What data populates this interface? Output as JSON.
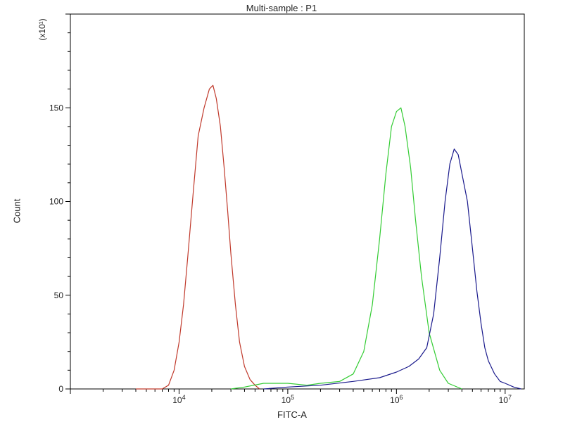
{
  "chart_data": {
    "type": "line",
    "title": "Multi-sample : P1",
    "xlabel": "FITC-A",
    "ylabel": "Count",
    "y_multiplier": "(x10¹)",
    "x_scale": "log",
    "xlim": [
      1000,
      15000000
    ],
    "ylim": [
      0,
      200
    ],
    "y_ticks": [
      0,
      50,
      100,
      150
    ],
    "x_ticks": [
      {
        "value": 10000,
        "base": "10",
        "exp": "4"
      },
      {
        "value": 100000,
        "base": "10",
        "exp": "5"
      },
      {
        "value": 1000000,
        "base": "10",
        "exp": "6"
      },
      {
        "value": 10000000,
        "base": "10",
        "exp": "7"
      }
    ],
    "grid": false,
    "series": [
      {
        "color": "#c0392b",
        "points": [
          [
            4000,
            0
          ],
          [
            7000,
            0
          ],
          [
            8000,
            2
          ],
          [
            9000,
            10
          ],
          [
            10000,
            25
          ],
          [
            11000,
            45
          ],
          [
            12000,
            70
          ],
          [
            13500,
            105
          ],
          [
            15000,
            135
          ],
          [
            17000,
            150
          ],
          [
            19000,
            160
          ],
          [
            20500,
            162
          ],
          [
            22000,
            155
          ],
          [
            24000,
            140
          ],
          [
            26000,
            118
          ],
          [
            28000,
            95
          ],
          [
            30000,
            72
          ],
          [
            33000,
            45
          ],
          [
            36000,
            25
          ],
          [
            40000,
            12
          ],
          [
            45000,
            5
          ],
          [
            50000,
            2
          ],
          [
            55000,
            0
          ]
        ]
      },
      {
        "color": "#33cc33",
        "points": [
          [
            30000,
            0
          ],
          [
            40000,
            1
          ],
          [
            60000,
            3
          ],
          [
            100000,
            3
          ],
          [
            150000,
            2
          ],
          [
            200000,
            3
          ],
          [
            300000,
            4
          ],
          [
            400000,
            8
          ],
          [
            500000,
            20
          ],
          [
            600000,
            45
          ],
          [
            700000,
            80
          ],
          [
            800000,
            115
          ],
          [
            900000,
            140
          ],
          [
            1000000,
            148
          ],
          [
            1100000,
            150
          ],
          [
            1200000,
            140
          ],
          [
            1350000,
            118
          ],
          [
            1500000,
            90
          ],
          [
            1700000,
            60
          ],
          [
            2000000,
            30
          ],
          [
            2500000,
            10
          ],
          [
            3000000,
            3
          ],
          [
            4000000,
            0
          ]
        ]
      },
      {
        "color": "#1a1a8c",
        "points": [
          [
            60000,
            0
          ],
          [
            100000,
            1
          ],
          [
            200000,
            2
          ],
          [
            400000,
            4
          ],
          [
            700000,
            6
          ],
          [
            1000000,
            9
          ],
          [
            1300000,
            12
          ],
          [
            1600000,
            16
          ],
          [
            1900000,
            22
          ],
          [
            2200000,
            40
          ],
          [
            2500000,
            70
          ],
          [
            2800000,
            100
          ],
          [
            3100000,
            120
          ],
          [
            3400000,
            128
          ],
          [
            3700000,
            125
          ],
          [
            4000000,
            115
          ],
          [
            4500000,
            100
          ],
          [
            5000000,
            75
          ],
          [
            5500000,
            52
          ],
          [
            6000000,
            35
          ],
          [
            6500000,
            22
          ],
          [
            7000000,
            15
          ],
          [
            8000000,
            8
          ],
          [
            9000000,
            4
          ],
          [
            10000000,
            3
          ],
          [
            12000000,
            1
          ],
          [
            14000000,
            0
          ]
        ]
      }
    ]
  }
}
